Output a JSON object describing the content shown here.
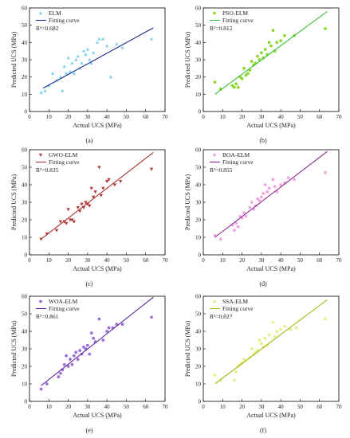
{
  "chart_data": [
    {
      "type": "scatter",
      "panel_label": "(a)",
      "xlabel": "Actual UCS (MPa)",
      "ylabel": "Predicted UCS (MPa)",
      "xlim": [
        0,
        70
      ],
      "ylim": [
        0,
        60
      ],
      "xticks": [
        0,
        10,
        20,
        30,
        40,
        50,
        60,
        70
      ],
      "yticks": [
        0,
        10,
        20,
        30,
        40,
        50,
        60
      ],
      "series_name": "ELM",
      "fit_name": "Fitting curve",
      "r2_label": "R²=0.682",
      "marker": "triangle",
      "point_color": "#7ed3f0",
      "line_color": "#1f2a8c",
      "points": [
        [
          6,
          11
        ],
        [
          8,
          12
        ],
        [
          10,
          15
        ],
        [
          12,
          22
        ],
        [
          14,
          18
        ],
        [
          16,
          20
        ],
        [
          17,
          12
        ],
        [
          18,
          26
        ],
        [
          19,
          22
        ],
        [
          20,
          31
        ],
        [
          21,
          23
        ],
        [
          22,
          28
        ],
        [
          23,
          22
        ],
        [
          24,
          30
        ],
        [
          25,
          32
        ],
        [
          26,
          25
        ],
        [
          27,
          28
        ],
        [
          28,
          35
        ],
        [
          29,
          33
        ],
        [
          30,
          36
        ],
        [
          31,
          30
        ],
        [
          32,
          28
        ],
        [
          33,
          34
        ],
        [
          35,
          40
        ],
        [
          36,
          42
        ],
        [
          38,
          42
        ],
        [
          40,
          38
        ],
        [
          42,
          20
        ],
        [
          45,
          39
        ],
        [
          48,
          37
        ],
        [
          63,
          42
        ]
      ],
      "fit": [
        [
          7,
          13.5
        ],
        [
          64,
          48.5
        ]
      ]
    },
    {
      "type": "scatter",
      "panel_label": "(b)",
      "xlabel": "Actual UCS (MPa)",
      "ylabel": "Predicted UCS (MPa)",
      "xlim": [
        0,
        70
      ],
      "ylim": [
        0,
        60
      ],
      "xticks": [
        0,
        10,
        20,
        30,
        40,
        50,
        60,
        70
      ],
      "yticks": [
        0,
        10,
        20,
        30,
        40,
        50,
        60
      ],
      "series_name": "PSO-ELM",
      "fit_name": "Fitting curve",
      "r2_label": "R²=0.812",
      "marker": "circle",
      "point_color": "#8fd62f",
      "line_color": "#3bbf3b",
      "points": [
        [
          6,
          17
        ],
        [
          9,
          13
        ],
        [
          15,
          15
        ],
        [
          16,
          14
        ],
        [
          17,
          16
        ],
        [
          18,
          14
        ],
        [
          19,
          20
        ],
        [
          20,
          19
        ],
        [
          21,
          25
        ],
        [
          22,
          21
        ],
        [
          23,
          22
        ],
        [
          24,
          24
        ],
        [
          25,
          29
        ],
        [
          26,
          27
        ],
        [
          27,
          28
        ],
        [
          28,
          32
        ],
        [
          29,
          30
        ],
        [
          30,
          34
        ],
        [
          31,
          31
        ],
        [
          32,
          36
        ],
        [
          33,
          33
        ],
        [
          34,
          40
        ],
        [
          35,
          38
        ],
        [
          36,
          47
        ],
        [
          37,
          35
        ],
        [
          38,
          40
        ],
        [
          40,
          41
        ],
        [
          42,
          44
        ],
        [
          47,
          44
        ],
        [
          63,
          48
        ]
      ],
      "fit": [
        [
          6,
          10
        ],
        [
          64,
          58
        ]
      ]
    },
    {
      "type": "scatter",
      "panel_label": "(c)",
      "xlabel": "Actual UCS (MPa)",
      "ylabel": "Predicted UCS (MPa)",
      "xlim": [
        0,
        70
      ],
      "ylim": [
        0,
        60
      ],
      "xticks": [
        0,
        10,
        20,
        30,
        40,
        50,
        60,
        70
      ],
      "yticks": [
        0,
        10,
        20,
        30,
        40,
        50,
        60
      ],
      "series_name": "GWO-ELM",
      "fit_name": "Fitting curve",
      "r2_label": "R²=0.835",
      "marker": "triangle-down",
      "point_color": "#b33a3a",
      "line_color": "#a9342f",
      "points": [
        [
          6,
          9
        ],
        [
          9,
          12
        ],
        [
          14,
          14
        ],
        [
          16,
          19
        ],
        [
          18,
          19
        ],
        [
          19,
          18
        ],
        [
          20,
          26
        ],
        [
          21,
          20
        ],
        [
          22,
          20
        ],
        [
          23,
          19
        ],
        [
          25,
          27
        ],
        [
          26,
          25
        ],
        [
          27,
          29
        ],
        [
          28,
          27
        ],
        [
          29,
          30
        ],
        [
          30,
          29
        ],
        [
          31,
          28
        ],
        [
          32,
          38
        ],
        [
          33,
          33
        ],
        [
          34,
          36
        ],
        [
          36,
          50
        ],
        [
          37,
          34
        ],
        [
          38,
          38
        ],
        [
          40,
          42
        ],
        [
          41,
          43
        ],
        [
          44,
          40
        ],
        [
          47,
          42
        ],
        [
          63,
          49
        ]
      ],
      "fit": [
        [
          6,
          9
        ],
        [
          64,
          58.5
        ]
      ]
    },
    {
      "type": "scatter",
      "panel_label": "(d)",
      "xlabel": "Actual UCS (MPa)",
      "ylabel": "Predicted UCS (MPa)",
      "xlim": [
        0,
        70
      ],
      "ylim": [
        0,
        60
      ],
      "xticks": [
        0,
        10,
        20,
        30,
        40,
        50,
        60,
        70
      ],
      "yticks": [
        0,
        10,
        20,
        30,
        40,
        50,
        60
      ],
      "series_name": "BOA-ELM",
      "fit_name": "Fitting curve",
      "r2_label": "R²=0.855",
      "marker": "circle",
      "point_color": "#f0a6e0",
      "line_color": "#8a2a8a",
      "points": [
        [
          6,
          11
        ],
        [
          9,
          9
        ],
        [
          15,
          17
        ],
        [
          16,
          14
        ],
        [
          17,
          18
        ],
        [
          18,
          16
        ],
        [
          19,
          22
        ],
        [
          20,
          21
        ],
        [
          21,
          24
        ],
        [
          22,
          22
        ],
        [
          24,
          27
        ],
        [
          25,
          30
        ],
        [
          26,
          26
        ],
        [
          27,
          28
        ],
        [
          28,
          32
        ],
        [
          29,
          31
        ],
        [
          30,
          33
        ],
        [
          31,
          35
        ],
        [
          32,
          40
        ],
        [
          33,
          36
        ],
        [
          34,
          38
        ],
        [
          36,
          43
        ],
        [
          37,
          39
        ],
        [
          38,
          36
        ],
        [
          40,
          40
        ],
        [
          42,
          41
        ],
        [
          44,
          44
        ],
        [
          47,
          43
        ],
        [
          63,
          47
        ]
      ],
      "fit": [
        [
          6,
          10
        ],
        [
          64,
          59
        ]
      ]
    },
    {
      "type": "scatter",
      "panel_label": "(e)",
      "xlabel": "Actual UCS (MPa)",
      "ylabel": "Predicted UCS (MPa)",
      "xlim": [
        0,
        70
      ],
      "ylim": [
        0,
        60
      ],
      "xticks": [
        0,
        10,
        20,
        30,
        40,
        50,
        60,
        70
      ],
      "yticks": [
        0,
        10,
        20,
        30,
        40,
        50,
        60
      ],
      "series_name": "WOA-ELM",
      "fit_name": "Fitting curve",
      "r2_label": "R²=0.861",
      "marker": "circle",
      "point_color": "#9b70d9",
      "line_color": "#5b2a9c",
      "points": [
        [
          6,
          7
        ],
        [
          9,
          10
        ],
        [
          15,
          14
        ],
        [
          16,
          16
        ],
        [
          17,
          18
        ],
        [
          18,
          21
        ],
        [
          19,
          26
        ],
        [
          20,
          20
        ],
        [
          21,
          24
        ],
        [
          22,
          21
        ],
        [
          23,
          26
        ],
        [
          24,
          28
        ],
        [
          25,
          24
        ],
        [
          26,
          29
        ],
        [
          27,
          27
        ],
        [
          28,
          31
        ],
        [
          29,
          30
        ],
        [
          30,
          32
        ],
        [
          31,
          27
        ],
        [
          32,
          39
        ],
        [
          33,
          36
        ],
        [
          34,
          34
        ],
        [
          36,
          47
        ],
        [
          38,
          35
        ],
        [
          40,
          40
        ],
        [
          41,
          42
        ],
        [
          43,
          42
        ],
        [
          45,
          44
        ],
        [
          48,
          44
        ],
        [
          63,
          48
        ]
      ],
      "fit": [
        [
          6,
          9
        ],
        [
          64,
          59.5
        ]
      ]
    },
    {
      "type": "scatter",
      "panel_label": "(f)",
      "xlabel": "Actual UCS (MPa)",
      "ylabel": "Predicted UCS (MPa)",
      "xlim": [
        0,
        70
      ],
      "ylim": [
        0,
        60
      ],
      "xticks": [
        0,
        10,
        20,
        30,
        40,
        50,
        60,
        70
      ],
      "yticks": [
        0,
        10,
        20,
        30,
        40,
        50,
        60
      ],
      "series_name": "SSA-ELM",
      "fit_name": "Fitting curve",
      "r2_label": "R²=0.827",
      "marker": "circle",
      "point_color": "#e8ef8a",
      "line_color": "#a6b81f",
      "points": [
        [
          6,
          15
        ],
        [
          9,
          12
        ],
        [
          16,
          12
        ],
        [
          17,
          17
        ],
        [
          18,
          20
        ],
        [
          19,
          21
        ],
        [
          20,
          22
        ],
        [
          21,
          24
        ],
        [
          22,
          23
        ],
        [
          24,
          25
        ],
        [
          25,
          30
        ],
        [
          26,
          27
        ],
        [
          27,
          28
        ],
        [
          28,
          29
        ],
        [
          29,
          35
        ],
        [
          30,
          33
        ],
        [
          31,
          31
        ],
        [
          32,
          36
        ],
        [
          33,
          32
        ],
        [
          34,
          38
        ],
        [
          36,
          45
        ],
        [
          37,
          37
        ],
        [
          38,
          40
        ],
        [
          40,
          41
        ],
        [
          42,
          43
        ],
        [
          45,
          41
        ],
        [
          48,
          42
        ],
        [
          63,
          47
        ]
      ],
      "fit": [
        [
          6,
          10
        ],
        [
          64,
          58
        ]
      ]
    }
  ]
}
